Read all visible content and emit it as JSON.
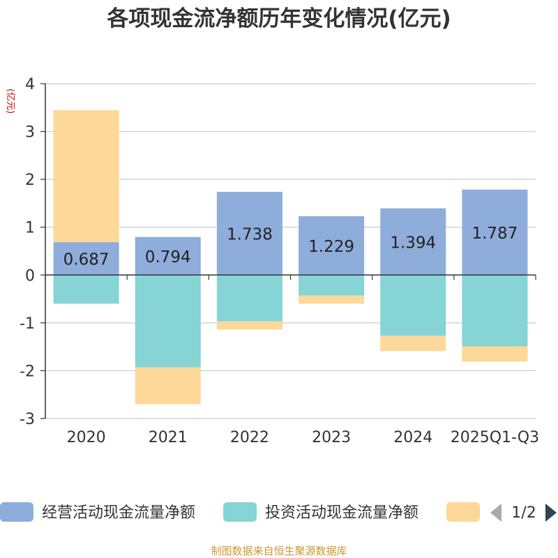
{
  "chart_data": {
    "type": "bar",
    "stacked": true,
    "title": "各项现金流净额历年变化情况(亿元)",
    "xlabel": "",
    "ylabel": "(亿元)",
    "ylim": [
      -3,
      4
    ],
    "yticks": [
      4,
      3,
      2,
      1,
      0,
      -1,
      -2,
      -3
    ],
    "grid": true,
    "categories": [
      "2020",
      "2021",
      "2022",
      "2023",
      "2024",
      "2025Q1-Q3"
    ],
    "series": [
      {
        "name": "经营活动现金流量净额",
        "color": "#8eaddb",
        "values": [
          0.687,
          0.794,
          1.738,
          1.229,
          1.394,
          1.787
        ],
        "labels": [
          "0.687",
          "0.794",
          "1.738",
          "1.229",
          "1.394",
          "1.787"
        ]
      },
      {
        "name": "投资活动现金流量净额",
        "color": "#86d4d5",
        "values": [
          -0.6,
          -1.93,
          -0.97,
          -0.43,
          -1.27,
          -1.49
        ]
      },
      {
        "name": "",
        "color": "#fdd898",
        "values": [
          2.76,
          -0.77,
          -0.17,
          -0.17,
          -0.32,
          -0.32
        ]
      }
    ],
    "legend": {
      "position": "bottom",
      "page_indicator": "1/2"
    },
    "source": "制图数据来自恒生聚源数据库"
  }
}
